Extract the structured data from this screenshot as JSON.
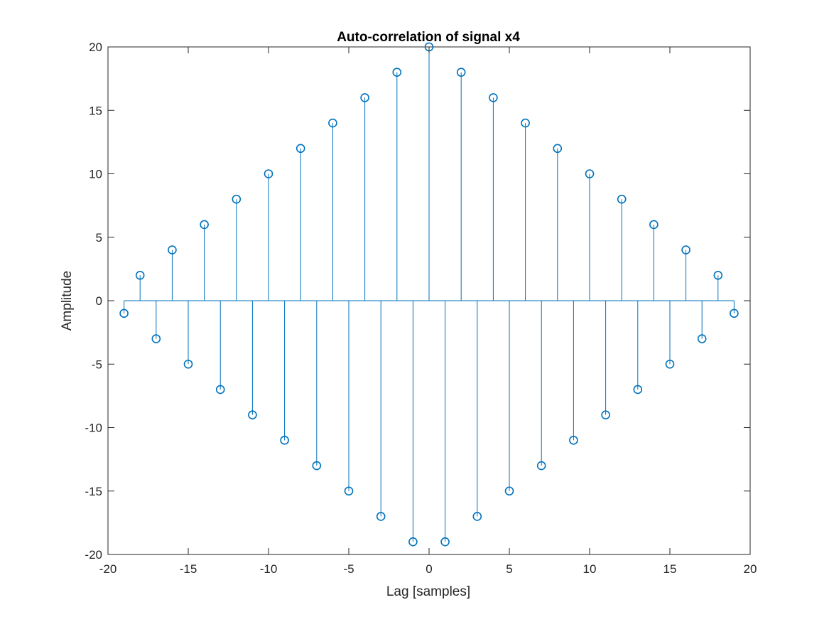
{
  "chart_data": {
    "type": "stem",
    "title": "Auto-correlation of signal x4",
    "xlabel": "Lag [samples]",
    "ylabel": "Amplitude",
    "xlim": [
      -20,
      20
    ],
    "ylim": [
      -20,
      20
    ],
    "xticks": [
      -20,
      -15,
      -10,
      -5,
      0,
      5,
      10,
      15,
      20
    ],
    "yticks": [
      -20,
      -15,
      -10,
      -5,
      0,
      5,
      10,
      15,
      20
    ],
    "grid": false,
    "box": true,
    "series": [
      {
        "name": "autocorrelation",
        "color": "#0072BD",
        "marker": "circle",
        "x": [
          -19,
          -18,
          -17,
          -16,
          -15,
          -14,
          -13,
          -12,
          -11,
          -10,
          -9,
          -8,
          -7,
          -6,
          -5,
          -4,
          -3,
          -2,
          -1,
          0,
          1,
          2,
          3,
          4,
          5,
          6,
          7,
          8,
          9,
          10,
          11,
          12,
          13,
          14,
          15,
          16,
          17,
          18,
          19
        ],
        "y": [
          -1,
          2,
          -3,
          4,
          -5,
          6,
          -7,
          8,
          -9,
          10,
          -11,
          12,
          -13,
          14,
          -15,
          16,
          -17,
          18,
          -19,
          20,
          -19,
          18,
          -17,
          16,
          -15,
          14,
          -13,
          12,
          -11,
          10,
          -9,
          8,
          -7,
          6,
          -5,
          4,
          -3,
          2,
          -1
        ]
      }
    ],
    "axis_color": "#262626"
  }
}
